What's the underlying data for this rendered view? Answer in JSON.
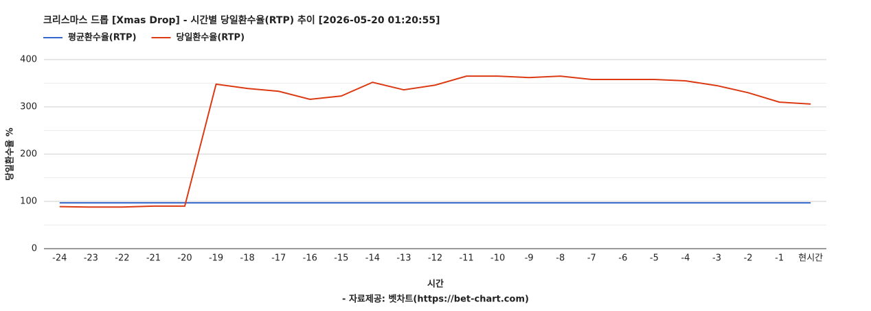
{
  "chart_data": {
    "type": "line",
    "title": "크리스마스 드롭 [Xmas Drop] - 시간별 당일환수율(RTP) 추이 [2026-05-20 01:20:55]",
    "x_label": "시간",
    "y_label": "당일환수율 %",
    "source": "- 자료제공: 벳차트(https://bet-chart.com)",
    "categories": [
      "-24",
      "-23",
      "-22",
      "-21",
      "-20",
      "-19",
      "-18",
      "-17",
      "-16",
      "-15",
      "-14",
      "-13",
      "-12",
      "-11",
      "-10",
      "-9",
      "-8",
      "-7",
      "-6",
      "-5",
      "-4",
      "-3",
      "-2",
      "-1",
      "현시간"
    ],
    "series": [
      {
        "name": "평균환수율(RTP)",
        "color": "#3366cc",
        "values": [
          97,
          97,
          97,
          97,
          97,
          97,
          97,
          97,
          97,
          97,
          97,
          97,
          97,
          97,
          97,
          97,
          97,
          97,
          97,
          97,
          97,
          97,
          97,
          97,
          97
        ]
      },
      {
        "name": "당일환수율(RTP)",
        "color": "#dc3912",
        "values": [
          89,
          88,
          88,
          90,
          90,
          348,
          339,
          333,
          316,
          323,
          352,
          336,
          346,
          365,
          365,
          362,
          365,
          358,
          358,
          358,
          355,
          345,
          330,
          310,
          306
        ]
      }
    ],
    "ylim": [
      0,
      400
    ],
    "yticks": [
      0,
      100,
      200,
      300,
      400
    ],
    "minor_gridlines": [
      50,
      150,
      250,
      350
    ],
    "grid": true,
    "legend": "top-left"
  }
}
